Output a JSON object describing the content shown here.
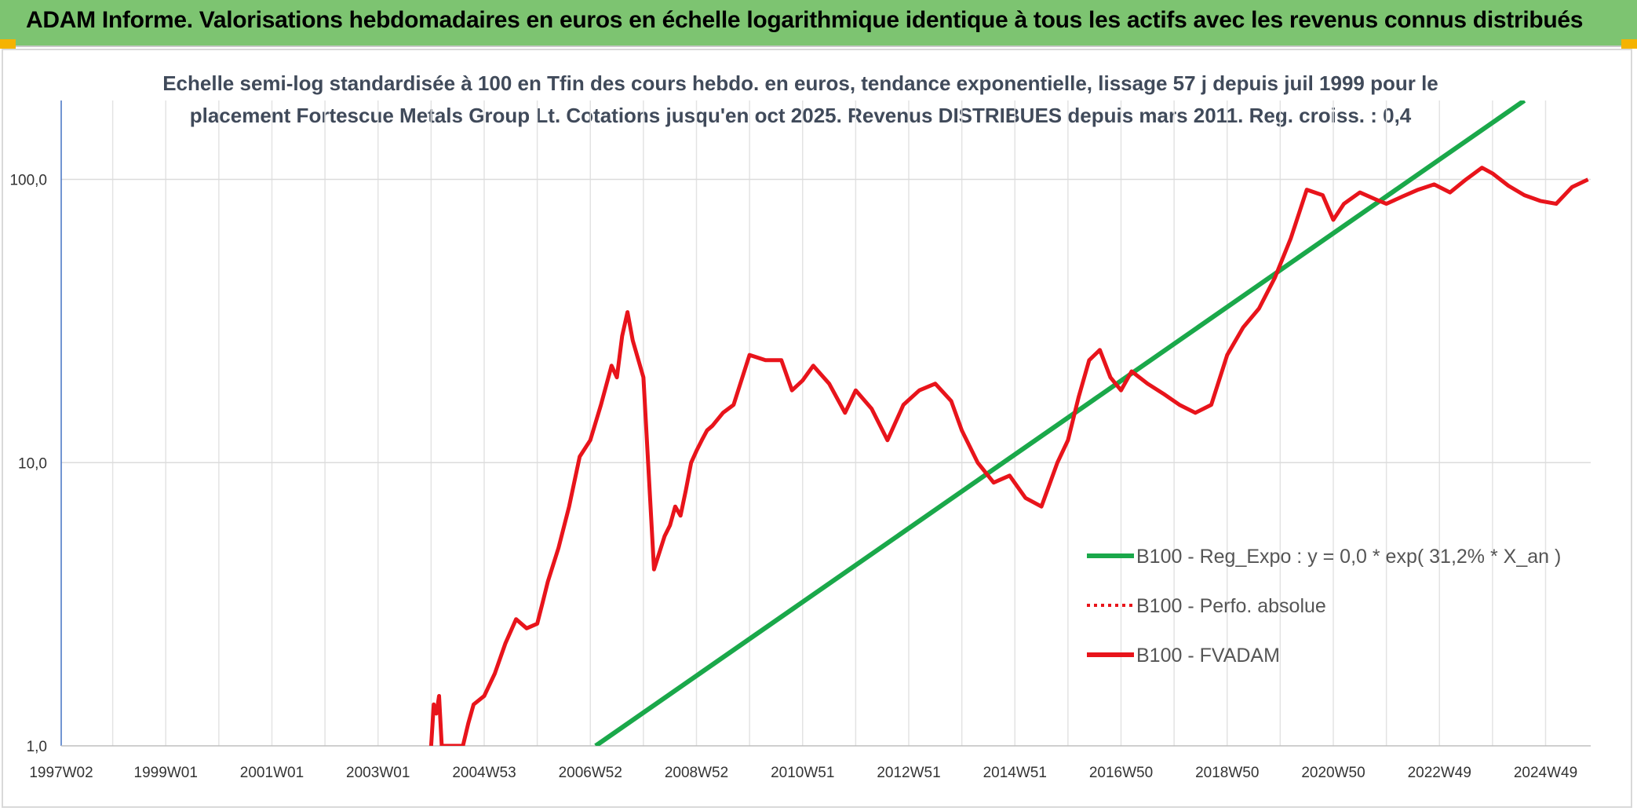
{
  "header": {
    "title": "ADAM Informe. Valorisations hebdomadaires en euros en échelle logarithmique identique à tous les actifs avec les revenus connus distribués"
  },
  "chart_data": {
    "type": "line",
    "title_lines": [
      "Echelle semi-log standardisée à 100 en Tfin des cours hebdo. en euros, tendance exponentielle, lissage 57 j depuis juil 1999 pour le",
      "placement Fortescue Metals Group Lt. Cotations jusqu'en oct 2025. Revenus DISTRIBUES depuis mars 2011. Reg. croiss. : 0,4"
    ],
    "y_scale": "log",
    "ylim": [
      1,
      190
    ],
    "y_ticks": [
      {
        "value": 1,
        "label": "1,0"
      },
      {
        "value": 10,
        "label": "10,0"
      },
      {
        "value": 100,
        "label": "100,0"
      }
    ],
    "xlim": [
      1997.03,
      2025.85
    ],
    "x_ticks": [
      {
        "value": 1997.03,
        "label": "1997W02"
      },
      {
        "value": 1999.0,
        "label": "1999W01"
      },
      {
        "value": 2001.0,
        "label": "2001W01"
      },
      {
        "value": 2003.0,
        "label": "2003W01"
      },
      {
        "value": 2005.0,
        "label": "2004W53"
      },
      {
        "value": 2007.0,
        "label": "2006W52"
      },
      {
        "value": 2009.0,
        "label": "2008W52"
      },
      {
        "value": 2011.0,
        "label": "2010W51"
      },
      {
        "value": 2013.0,
        "label": "2012W51"
      },
      {
        "value": 2015.0,
        "label": "2014W51"
      },
      {
        "value": 2017.0,
        "label": "2016W50"
      },
      {
        "value": 2019.0,
        "label": "2018W50"
      },
      {
        "value": 2021.0,
        "label": "2020W50"
      },
      {
        "value": 2023.0,
        "label": "2022W49"
      },
      {
        "value": 2025.0,
        "label": "2024W49"
      }
    ],
    "grid": true,
    "legend_position": "right-middle",
    "series": [
      {
        "name": "B100 - Reg_Expo : y = 0,0 * exp( 31,2% *  X_an )",
        "color": "#1aa84a",
        "style": "solid",
        "x": [
          2007.1,
          2024.6
        ],
        "y": [
          1.0,
          190
        ]
      },
      {
        "name": "B100 - Perfo. absolue",
        "color": "#e8141b",
        "style": "dotted",
        "x": [],
        "y": []
      },
      {
        "name": "B100 - FVADAM",
        "color": "#e8141b",
        "style": "solid",
        "x": [
          2004.0,
          2004.05,
          2004.1,
          2004.15,
          2004.2,
          2004.6,
          2004.7,
          2004.8,
          2005.0,
          2005.2,
          2005.4,
          2005.6,
          2005.8,
          2006.0,
          2006.1,
          2006.2,
          2006.4,
          2006.6,
          2006.8,
          2007.0,
          2007.2,
          2007.4,
          2007.5,
          2007.6,
          2007.7,
          2007.8,
          2008.0,
          2008.2,
          2008.4,
          2008.5,
          2008.6,
          2008.7,
          2008.8,
          2008.9,
          2009.0,
          2009.1,
          2009.2,
          2009.3,
          2009.5,
          2009.7,
          2010.0,
          2010.3,
          2010.6,
          2010.8,
          2011.0,
          2011.2,
          2011.5,
          2011.8,
          2012.0,
          2012.3,
          2012.6,
          2012.9,
          2013.2,
          2013.5,
          2013.8,
          2014.0,
          2014.3,
          2014.6,
          2014.9,
          2015.2,
          2015.5,
          2015.8,
          2016.0,
          2016.2,
          2016.4,
          2016.6,
          2016.8,
          2017.0,
          2017.2,
          2017.5,
          2017.8,
          2018.1,
          2018.4,
          2018.7,
          2019.0,
          2019.3,
          2019.6,
          2019.9,
          2020.2,
          2020.5,
          2020.8,
          2021.0,
          2021.2,
          2021.5,
          2021.8,
          2022.0,
          2022.3,
          2022.6,
          2022.9,
          2023.2,
          2023.5,
          2023.8,
          2024.0,
          2024.3,
          2024.6,
          2024.9,
          2025.2,
          2025.5,
          2025.8
        ],
        "y": [
          1.0,
          1.4,
          1.3,
          1.5,
          1.0,
          1.0,
          1.2,
          1.4,
          1.5,
          1.8,
          2.3,
          2.8,
          2.6,
          2.7,
          3.2,
          3.8,
          5.0,
          7.0,
          10.5,
          12.0,
          16.0,
          22.0,
          20.0,
          28.0,
          34.0,
          27.0,
          20.0,
          4.2,
          5.5,
          6.0,
          7.0,
          6.5,
          8.0,
          10.0,
          11.0,
          12.0,
          13.0,
          13.5,
          15.0,
          16.0,
          24.0,
          23.0,
          23.0,
          18.0,
          19.5,
          22.0,
          19.0,
          15.0,
          18.0,
          15.5,
          12.0,
          16.0,
          18.0,
          19.0,
          16.5,
          13.0,
          10.0,
          8.5,
          9.0,
          7.5,
          7.0,
          10.0,
          12.0,
          17.0,
          23.0,
          25.0,
          20.0,
          18.0,
          21.0,
          19.0,
          17.5,
          16.0,
          15.0,
          16.0,
          24.0,
          30.0,
          35.0,
          45.0,
          62.0,
          92.0,
          88.0,
          72.0,
          82.0,
          90.0,
          85.0,
          82.0,
          87.0,
          92.0,
          96.0,
          90.0,
          100.0,
          110.0,
          105.0,
          95.0,
          88.0,
          84.0,
          82.0,
          94.0,
          100.0
        ]
      }
    ]
  }
}
